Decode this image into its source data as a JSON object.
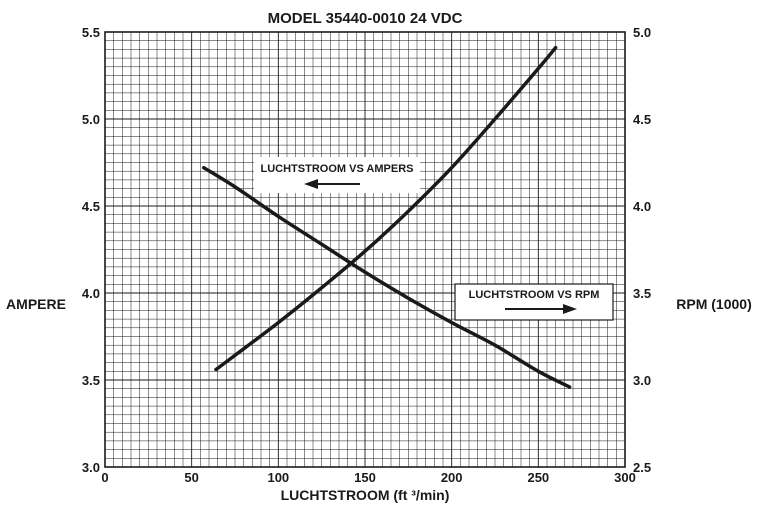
{
  "chart_data": {
    "type": "line",
    "title": "MODEL 35440-0010 24 VDC",
    "xlabel": "LUCHTSTROOM (ft ³/min)",
    "ylabel_left": "AMPERE",
    "ylabel_right": "RPM (1000)",
    "xlim": [
      0,
      300
    ],
    "ylim_left": [
      3.0,
      5.5
    ],
    "ylim_right": [
      2.5,
      5.0
    ],
    "x_ticks": [
      "0",
      "50",
      "100",
      "150",
      "200",
      "250",
      "300"
    ],
    "y_left_ticks": [
      "3.0",
      "3.5",
      "4.0",
      "4.5",
      "5.0",
      "5.5"
    ],
    "y_right_ticks": [
      "2.5",
      "3.0",
      "3.5",
      "4.0",
      "4.5",
      "5.0"
    ],
    "grid": true,
    "series": [
      {
        "name": "LUCHTSTROOM VS AMPERS",
        "axis": "left",
        "x": [
          57,
          75,
          100,
          125,
          150,
          175,
          200,
          225,
          250,
          268
        ],
        "y": [
          4.72,
          4.61,
          4.44,
          4.28,
          4.12,
          3.97,
          3.83,
          3.7,
          3.55,
          3.46
        ]
      },
      {
        "name": "LUCHTSTROOM VS RPM",
        "axis": "right",
        "x": [
          64,
          100,
          125,
          150,
          175,
          200,
          225,
          250,
          260
        ],
        "y": [
          3.06,
          3.33,
          3.53,
          3.74,
          3.97,
          4.22,
          4.5,
          4.79,
          4.91
        ]
      }
    ],
    "annotations": [
      {
        "text": "LUCHTSTROOM VS AMPERS",
        "arrow": "left"
      },
      {
        "text": "LUCHTSTROOM VS RPM",
        "arrow": "right"
      }
    ]
  }
}
